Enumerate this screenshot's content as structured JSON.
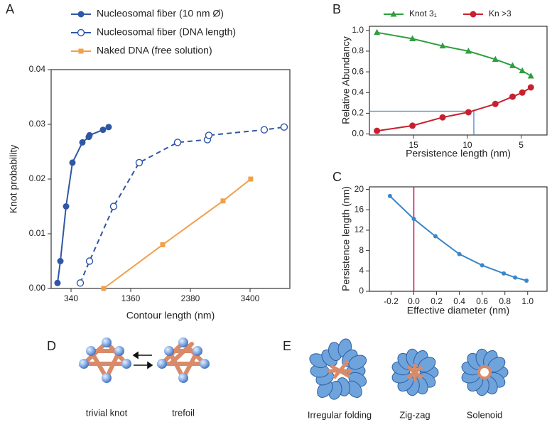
{
  "panel_labels": [
    "A",
    "B",
    "C",
    "D",
    "E"
  ],
  "chart_data": [
    {
      "type": "line",
      "x_label": "Contour length (nm)",
      "y_label": "Knot  probability",
      "xlim": [
        0,
        4080
      ],
      "xticks": [
        340,
        1360,
        2380,
        3400
      ],
      "ylim": [
        0,
        0.04
      ],
      "yticks": [
        {
          "value": 0,
          "label": "0.00"
        },
        {
          "value": 0.01,
          "label": "0.01"
        },
        {
          "value": 0.02,
          "label": "0.02"
        },
        {
          "value": 0.03,
          "label": "0.03"
        },
        {
          "value": 0.04,
          "label": "0.04"
        }
      ],
      "legend": "above",
      "series": [
        {
          "name": "Nucleosomal fiber (10 nm Ø)",
          "color": "#2f57a5",
          "marker": "circle",
          "dashed": false,
          "x": [
            109,
            158,
            255,
            364,
            534,
            643,
            656,
            886,
            983
          ],
          "values": [
            0.001,
            0.005,
            0.015,
            0.023,
            0.0267,
            0.0277,
            0.028,
            0.029,
            0.0295
          ]
        },
        {
          "name": "Nucleosomal fiber (DNA length)",
          "color": "#2f57a5",
          "marker": "open-circle",
          "dashed": true,
          "x": [
            498,
            656,
            1068,
            1505,
            2161,
            2671,
            2695,
            3642,
            3982
          ],
          "values": [
            0.001,
            0.005,
            0.015,
            0.023,
            0.0267,
            0.0272,
            0.028,
            0.029,
            0.0295
          ]
        },
        {
          "name": "Naked DNA  (free solution)",
          "color": "#f0a04b",
          "marker": "square",
          "dashed": false,
          "x": [
            898,
            1906,
            2938,
            3411
          ],
          "values": [
            0,
            0.008,
            0.016,
            0.02
          ]
        }
      ]
    },
    {
      "type": "line",
      "x_label": "Persistence length  (nm)",
      "y_label": "Relative  Abundancy",
      "xlim": [
        19.1,
        2.6
      ],
      "xticks": [
        15,
        10,
        5
      ],
      "ylim": [
        -0.01,
        1.04
      ],
      "yticks": [
        {
          "value": 0,
          "label": "0.0"
        },
        {
          "value": 0.2,
          "label": "0.2"
        },
        {
          "value": 0.4,
          "label": "0.4"
        },
        {
          "value": 0.6,
          "label": "0.6"
        },
        {
          "value": 0.8,
          "label": "0.8"
        },
        {
          "value": 1,
          "label": "1.0"
        }
      ],
      "legend": "above",
      "guide": {
        "x": 9.4,
        "y": 0.22,
        "color": "#4a86c8"
      },
      "series": [
        {
          "name": "Knot 3₁",
          "color": "#2e9e3e",
          "marker": "triangle",
          "dashed": false,
          "x": [
            18.4,
            15.1,
            12.3,
            9.9,
            7.4,
            5.8,
            4.9,
            4.1
          ],
          "values": [
            0.98,
            0.92,
            0.85,
            0.8,
            0.72,
            0.66,
            0.61,
            0.56
          ]
        },
        {
          "name": "Kn >3",
          "color": "#c8202f",
          "marker": "circle",
          "dashed": false,
          "x": [
            18.4,
            15.1,
            12.3,
            9.9,
            7.4,
            5.8,
            4.9,
            4.1
          ],
          "values": [
            0.03,
            0.08,
            0.16,
            0.21,
            0.29,
            0.36,
            0.4,
            0.45
          ]
        }
      ]
    },
    {
      "type": "line",
      "x_label": "Effective diameter  (nm)",
      "y_label": "Persistence length  (nm)",
      "xlim": [
        -0.39,
        1.17
      ],
      "xticks": [
        -0.2,
        {
          "value": 0,
          "label": "0.0"
        },
        0.2,
        0.4,
        0.6,
        0.8,
        {
          "value": 1,
          "label": "1.0"
        }
      ],
      "ylim": [
        0,
        20.5
      ],
      "yticks": [
        0,
        4,
        8,
        12,
        16,
        20
      ],
      "vline": {
        "x": 0,
        "color": "#c2185b"
      },
      "series": [
        {
          "color": "#3a86c8",
          "marker": "small-circle",
          "dashed": false,
          "x": [
            -0.21,
            0.0,
            0.19,
            0.4,
            0.6,
            0.79,
            0.89,
            0.99
          ],
          "values": [
            18.7,
            14.2,
            10.8,
            7.3,
            5.1,
            3.5,
            2.7,
            2.1
          ]
        }
      ]
    }
  ],
  "diagram_d": {
    "labels": [
      "trivial knot",
      "trefoil"
    ]
  },
  "diagram_e": {
    "labels": [
      "Irregular folding",
      "Zig-zag",
      "Solenoid"
    ]
  }
}
